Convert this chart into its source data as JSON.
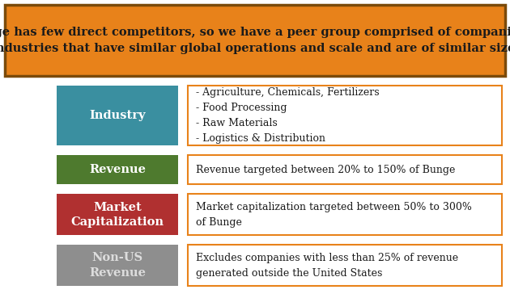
{
  "title_text": "Bunge has few direct competitors, so we have a peer group comprised of companies in\nadjacent industries that have similar global operations and scale and are of similar size to Bunge",
  "title_bg_color": "#E8821A",
  "title_border_color": "#7B4A0A",
  "title_text_color": "#1a1a1a",
  "rows": [
    {
      "label": "Industry",
      "label_color": "#3A8FA0",
      "label_text_color": "#FFFFFF",
      "content": "- Agriculture, Chemicals, Fertilizers\n- Food Processing\n- Raw Materials\n- Logistics & Distribution"
    },
    {
      "label": "Revenue",
      "label_color": "#4E7A2E",
      "label_text_color": "#FFFFFF",
      "content": "Revenue targeted between 20% to 150% of Bunge"
    },
    {
      "label": "Market\nCapitalization",
      "label_color": "#B03030",
      "label_text_color": "#FFFFFF",
      "content": "Market capitalization targeted between 50% to 300%\nof Bunge"
    },
    {
      "label": "Non-US\nRevenue",
      "label_color": "#8E8E8E",
      "label_text_color": "#DDDDDD",
      "content": "Excludes companies with less than 25% of revenue\ngenerated outside the United States"
    }
  ],
  "box_border_color": "#E8821A",
  "bg_color": "#FFFFFF",
  "content_font_size": 9.0,
  "label_font_size": 10.5,
  "title_font_size": 10.5,
  "fig_width": 6.3,
  "fig_height": 3.69,
  "dpi": 100
}
